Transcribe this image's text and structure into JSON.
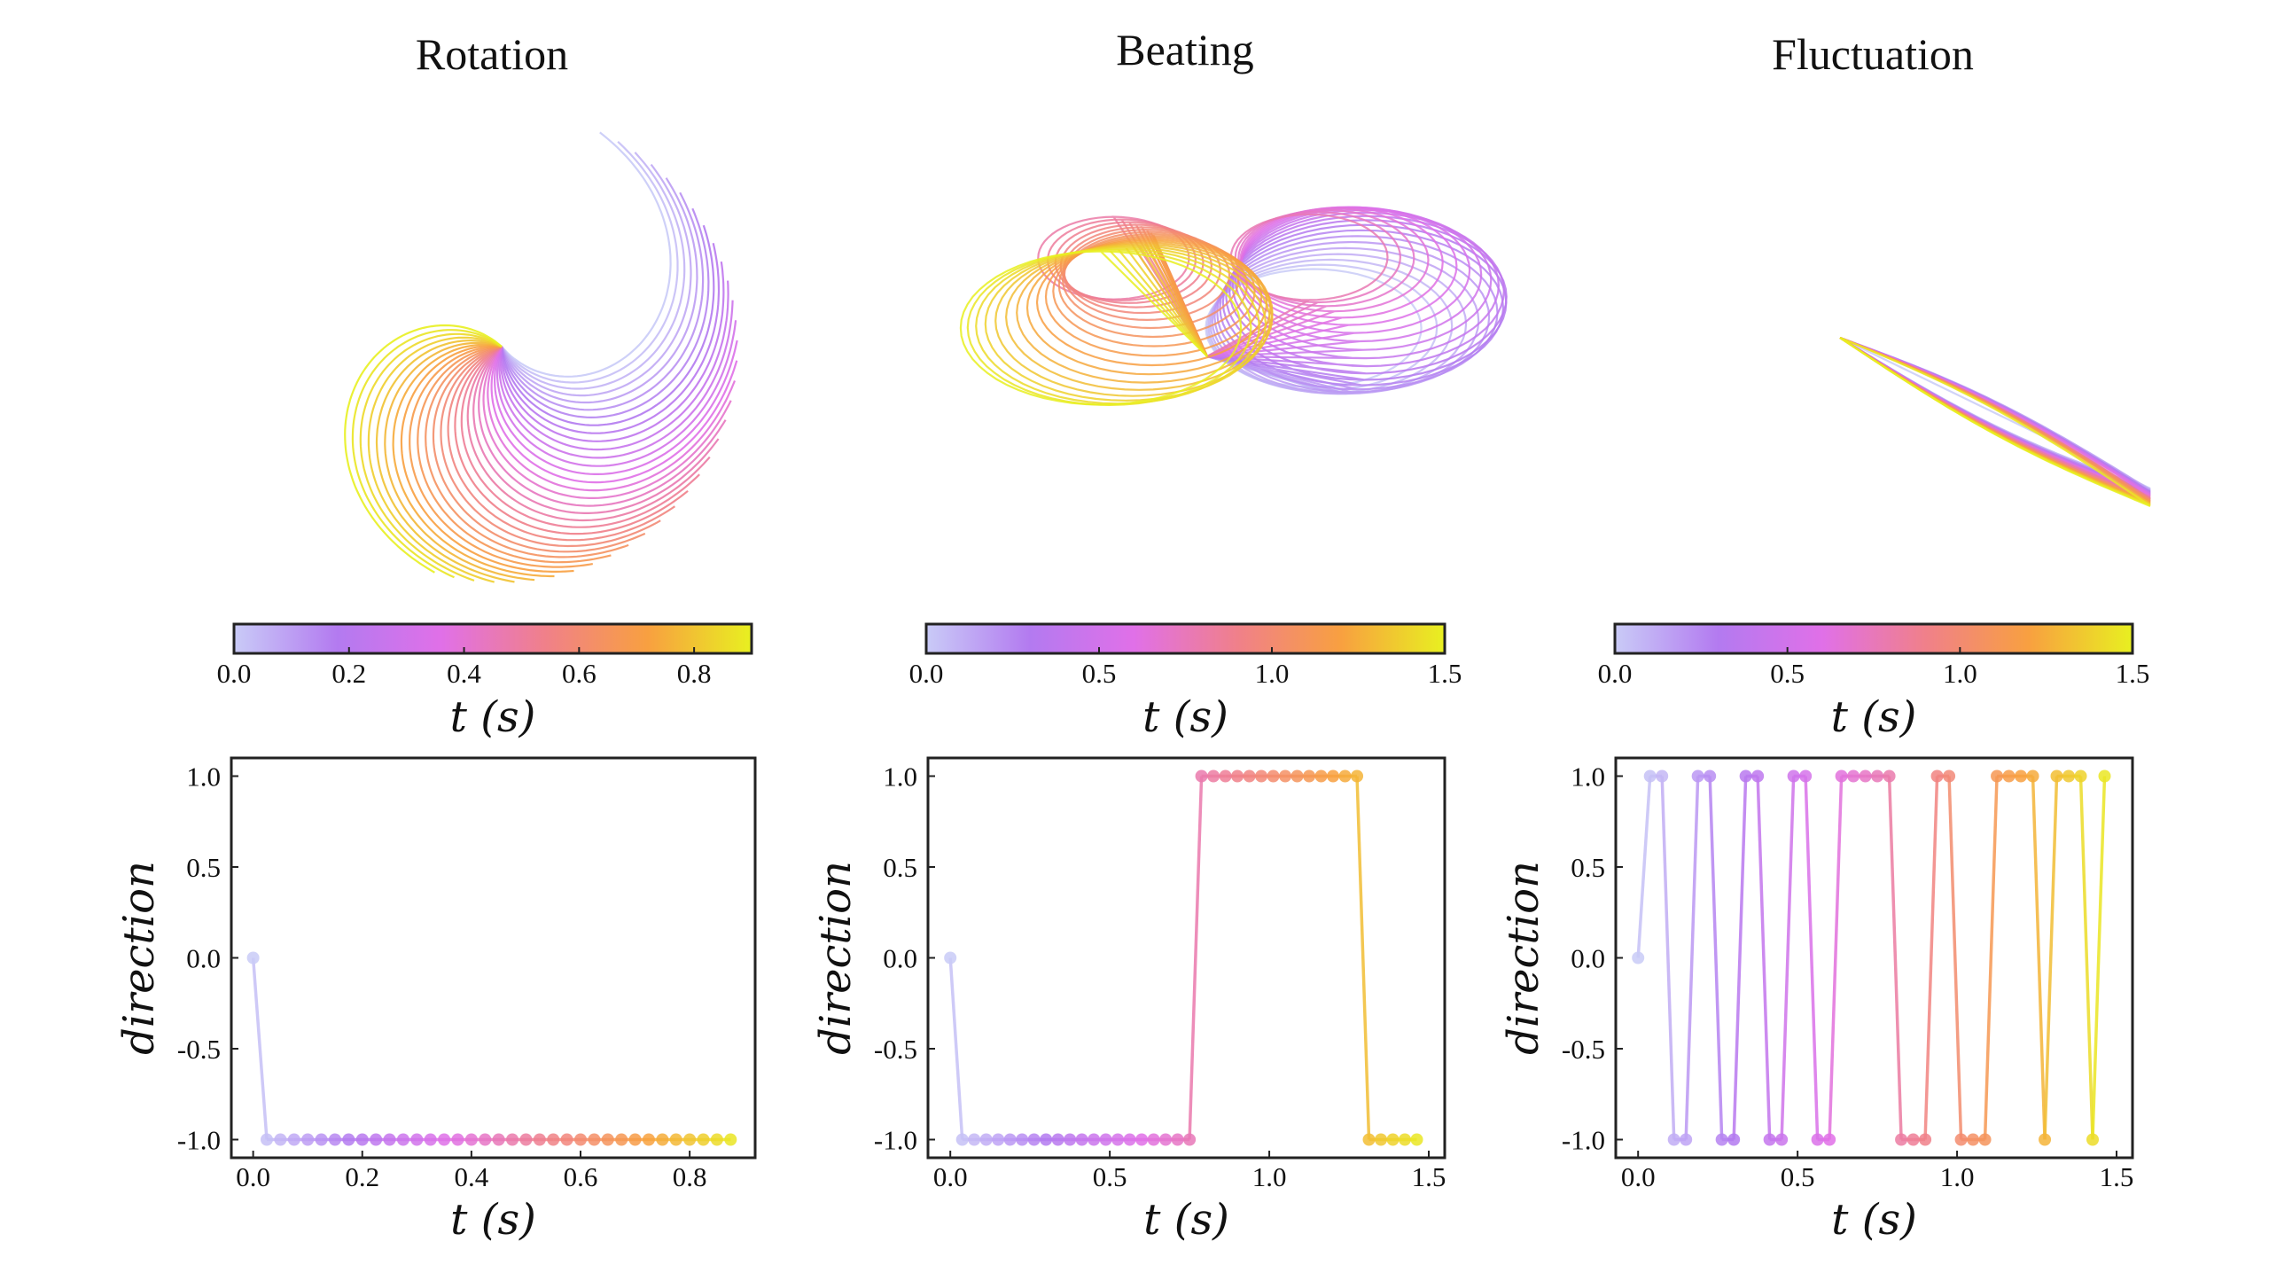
{
  "colormap": [
    "#c9cbf7",
    "#b37af0",
    "#e070e8",
    "#f0808a",
    "#f8a040",
    "#e8f020"
  ],
  "chart_data": [
    {
      "type": "scatter",
      "title": "Rotation",
      "panel": "trajectory",
      "colorbar": {
        "label": "t (s)",
        "range": [
          0,
          0.9
        ],
        "ticks": [
          "0.0",
          "0.2",
          "0.4",
          "0.6",
          "0.8"
        ]
      }
    },
    {
      "type": "scatter",
      "title": "Beating",
      "panel": "trajectory",
      "colorbar": {
        "label": "t (s)",
        "range": [
          0,
          1.5
        ],
        "ticks": [
          "0.0",
          "0.5",
          "1.0",
          "1.5"
        ]
      }
    },
    {
      "type": "scatter",
      "title": "Fluctuation",
      "panel": "trajectory",
      "colorbar": {
        "label": "t (s)",
        "range": [
          0,
          1.5
        ],
        "ticks": [
          "0.0",
          "0.5",
          "1.0",
          "1.5"
        ]
      }
    },
    {
      "type": "line",
      "xlabel": "t (s)",
      "ylabel": "direction",
      "xlim": [
        -0.04,
        0.92
      ],
      "ylim": [
        -1.1,
        1.1
      ],
      "xticks": [
        "0.0",
        "0.2",
        "0.4",
        "0.6",
        "0.8"
      ],
      "xtick_values": [
        0,
        0.2,
        0.4,
        0.6,
        0.8
      ],
      "yticks": [
        "1.0",
        "0.5",
        "0.0",
        "-0.5",
        "-1.0"
      ],
      "ytick_values": [
        1,
        0.5,
        0,
        -0.5,
        -1
      ],
      "color_range": [
        0,
        0.9
      ],
      "dt": 0.025,
      "y": [
        0,
        -1,
        -1,
        -1,
        -1,
        -1,
        -1,
        -1,
        -1,
        -1,
        -1,
        -1,
        -1,
        -1,
        -1,
        -1,
        -1,
        -1,
        -1,
        -1,
        -1,
        -1,
        -1,
        -1,
        -1,
        -1,
        -1,
        -1,
        -1,
        -1,
        -1,
        -1,
        -1,
        -1,
        -1,
        -1
      ]
    },
    {
      "type": "line",
      "xlabel": "t (s)",
      "ylabel": "direction",
      "xlim": [
        -0.07,
        1.55
      ],
      "ylim": [
        -1.1,
        1.1
      ],
      "xticks": [
        "0.0",
        "0.5",
        "1.0",
        "1.5"
      ],
      "xtick_values": [
        0,
        0.5,
        1,
        1.5
      ],
      "yticks": [
        "1.0",
        "0.5",
        "0.0",
        "-0.5",
        "-1.0"
      ],
      "ytick_values": [
        1,
        0.5,
        0,
        -0.5,
        -1
      ],
      "color_range": [
        0,
        1.5
      ],
      "dt": 0.0375,
      "y": [
        0,
        -1,
        -1,
        -1,
        -1,
        -1,
        -1,
        -1,
        -1,
        -1,
        -1,
        -1,
        -1,
        -1,
        -1,
        -1,
        -1,
        -1,
        -1,
        -1,
        -1,
        1,
        1,
        1,
        1,
        1,
        1,
        1,
        1,
        1,
        1,
        1,
        1,
        1,
        1,
        -1,
        -1,
        -1,
        -1,
        -1
      ]
    },
    {
      "type": "line",
      "xlabel": "t (s)",
      "ylabel": "direction",
      "xlim": [
        -0.07,
        1.55
      ],
      "ylim": [
        -1.1,
        1.1
      ],
      "xticks": [
        "0.0",
        "0.5",
        "1.0",
        "1.5"
      ],
      "xtick_values": [
        0,
        0.5,
        1,
        1.5
      ],
      "yticks": [
        "1.0",
        "0.5",
        "0.0",
        "-0.5",
        "-1.0"
      ],
      "ytick_values": [
        1,
        0.5,
        0,
        -0.5,
        -1
      ],
      "color_range": [
        0,
        1.5
      ],
      "dt": 0.0375,
      "y": [
        0,
        1,
        1,
        -1,
        -1,
        1,
        1,
        -1,
        -1,
        1,
        1,
        -1,
        -1,
        1,
        1,
        -1,
        -1,
        1,
        1,
        1,
        1,
        1,
        -1,
        -1,
        -1,
        1,
        1,
        -1,
        -1,
        -1,
        1,
        1,
        1,
        1,
        -1,
        1,
        1,
        1,
        -1,
        1
      ]
    }
  ]
}
